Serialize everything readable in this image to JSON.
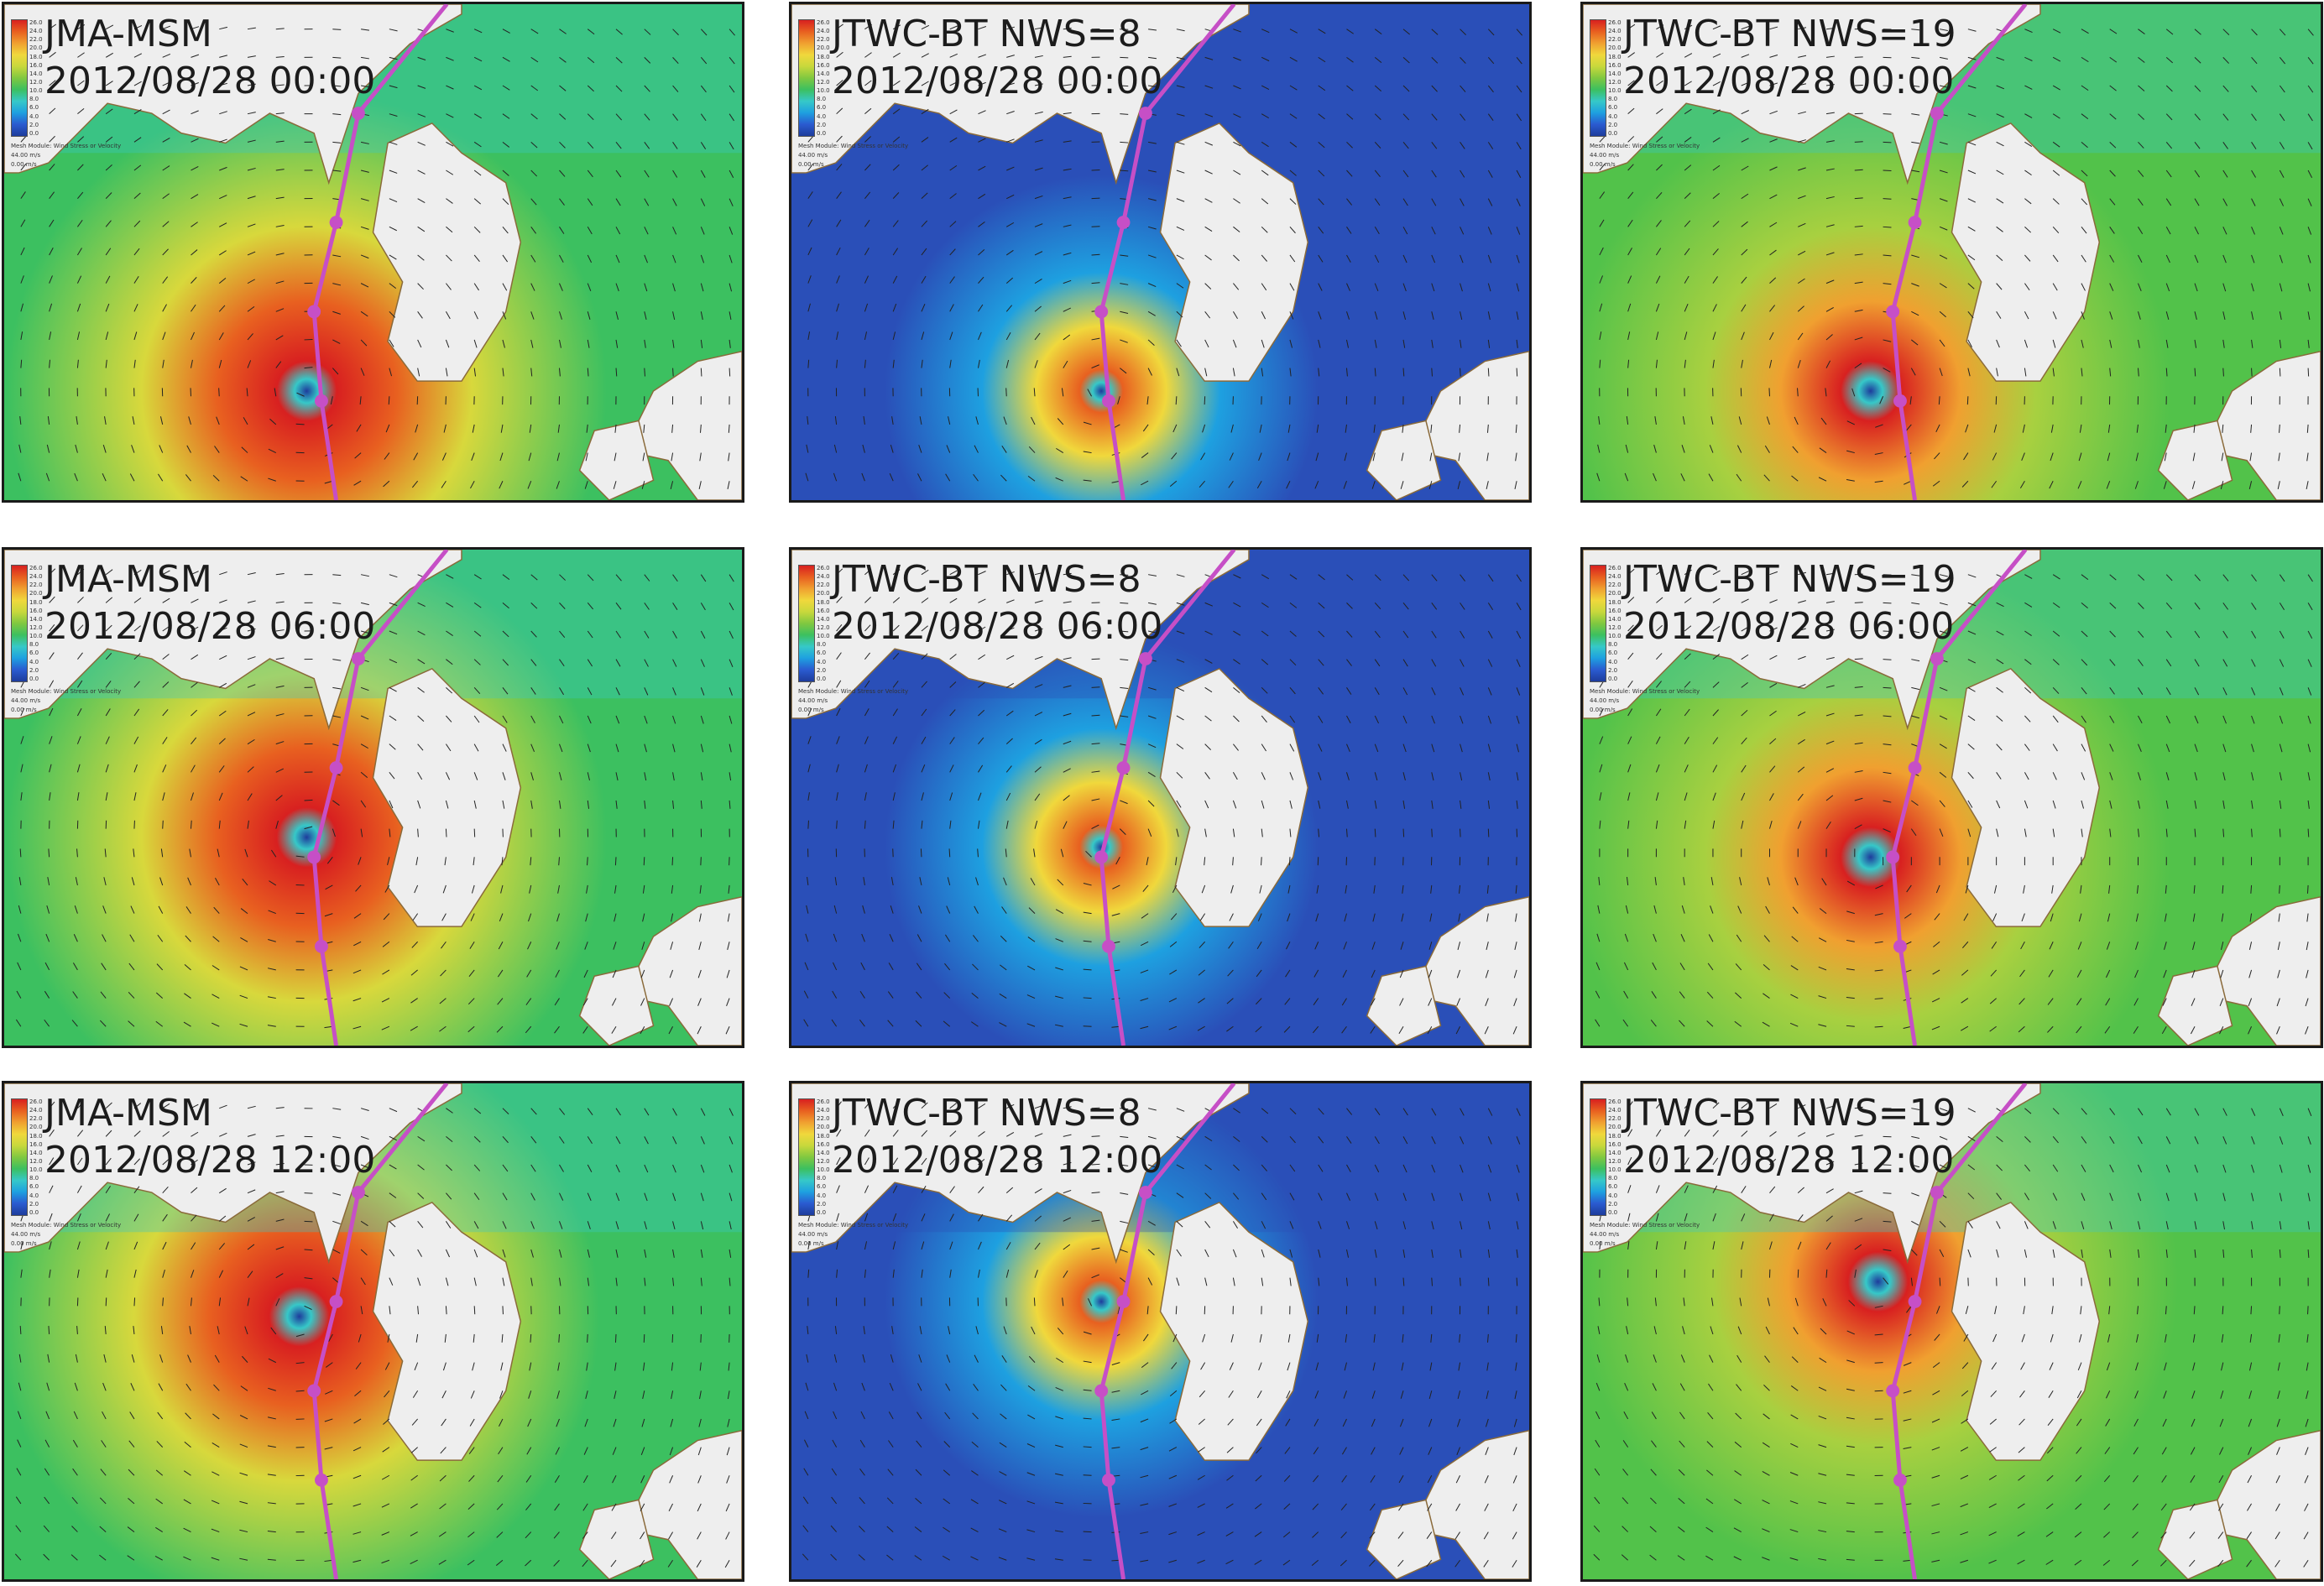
{
  "figure": {
    "colorbar": {
      "colors": [
        "#1e3c9c",
        "#2a5bd0",
        "#1ea0e0",
        "#36c8c8",
        "#3cc060",
        "#80c840",
        "#c8d83c",
        "#f0d83c",
        "#f0a030",
        "#e86020",
        "#d82020"
      ],
      "tick_labels": [
        "26.0",
        "24.0",
        "22.0",
        "20.0",
        "18.0",
        "16.0",
        "14.0",
        "12.0",
        "10.0",
        "8.0",
        "6.0",
        "4.0",
        "2.0",
        "0.0"
      ],
      "caption": "Mesh Module: Wind Stress or Velocity",
      "vector_scale_1": "44.00 m/s",
      "vector_scale_2": "0.00 m/s"
    },
    "track_color": "#c64fc6",
    "panels": [
      {
        "model": "JMA-MSM",
        "time": "2012/08/28 00:00",
        "intensity": "high",
        "eye": [
          0.41,
          0.78
        ]
      },
      {
        "model": "JTWC-BT NWS=8",
        "time": "2012/08/28 00:00",
        "intensity": "low",
        "eye": [
          0.42,
          0.78
        ]
      },
      {
        "model": "JTWC-BT NWS=19",
        "time": "2012/08/28 00:00",
        "intensity": "mid",
        "eye": [
          0.39,
          0.78
        ]
      },
      {
        "model": "JMA-MSM",
        "time": "2012/08/28 06:00",
        "intensity": "high",
        "eye": [
          0.41,
          0.58
        ]
      },
      {
        "model": "JTWC-BT NWS=8",
        "time": "2012/08/28 06:00",
        "intensity": "low",
        "eye": [
          0.42,
          0.6
        ]
      },
      {
        "model": "JTWC-BT NWS=19",
        "time": "2012/08/28 06:00",
        "intensity": "mid",
        "eye": [
          0.39,
          0.62
        ]
      },
      {
        "model": "JMA-MSM",
        "time": "2012/08/28 12:00",
        "intensity": "high",
        "eye": [
          0.4,
          0.47
        ]
      },
      {
        "model": "JTWC-BT NWS=8",
        "time": "2012/08/28 12:00",
        "intensity": "low",
        "eye": [
          0.42,
          0.44
        ]
      },
      {
        "model": "JTWC-BT NWS=19",
        "time": "2012/08/28 12:00",
        "intensity": "mid",
        "eye": [
          0.4,
          0.4
        ]
      }
    ]
  }
}
